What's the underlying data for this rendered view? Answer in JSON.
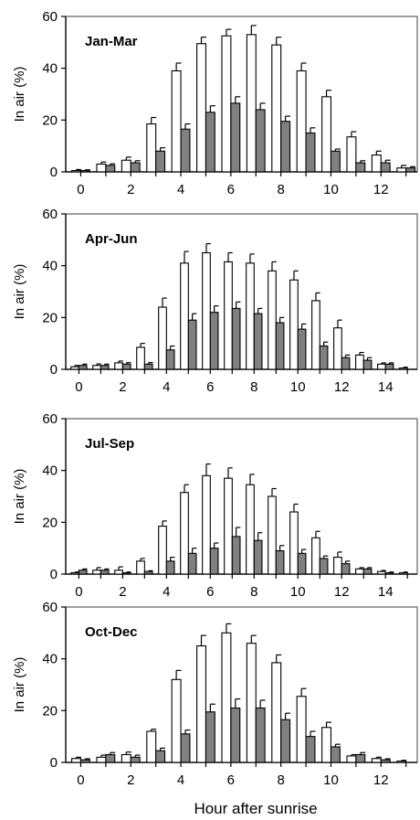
{
  "figure": {
    "xlabel": "Hour after sunrise",
    "colors": {
      "white_bar_fill": "#ffffff",
      "gray_bar_fill": "#808080",
      "bar_stroke": "#000000",
      "frame": "#7f7f7f"
    }
  },
  "chart_data": [
    {
      "type": "bar",
      "title": "Jan-Mar",
      "ylabel": "In air (%)",
      "xlabel": "",
      "ylim": [
        0,
        60
      ],
      "yticks": [
        0,
        20,
        40,
        60
      ],
      "xticks": [
        0,
        2,
        4,
        6,
        8,
        10,
        12
      ],
      "x": [
        0,
        1,
        2,
        3,
        4,
        5,
        6,
        7,
        8,
        9,
        10,
        11,
        12,
        13
      ],
      "series": [
        {
          "values": [
            0.5,
            3,
            4.5,
            18.5,
            39,
            49.5,
            52.5,
            53,
            49,
            39,
            29,
            13.5,
            6.5,
            1.5
          ],
          "errors": [
            0.4,
            0.8,
            1.2,
            2.5,
            3,
            2.5,
            2.5,
            3.5,
            3,
            3,
            2.5,
            2,
            1.5,
            1
          ]
        },
        {
          "values": [
            0.5,
            2.5,
            3.5,
            8,
            16.5,
            23,
            26.5,
            24,
            19.5,
            15,
            8,
            3.5,
            3.5,
            1.5
          ],
          "errors": [
            0.3,
            0.6,
            0.8,
            1.3,
            2,
            2.5,
            2.5,
            2.5,
            2,
            2,
            0.8,
            0.8,
            1,
            0.5
          ]
        }
      ]
    },
    {
      "type": "bar",
      "title": "Apr-Jun",
      "ylabel": "In air (%)",
      "xlabel": "",
      "ylim": [
        0,
        60
      ],
      "yticks": [
        0,
        20,
        40,
        60
      ],
      "xticks": [
        0,
        2,
        4,
        6,
        8,
        10,
        12,
        14
      ],
      "x": [
        0,
        1,
        2,
        3,
        4,
        5,
        6,
        7,
        8,
        9,
        10,
        11,
        12,
        13,
        14,
        15
      ],
      "series": [
        {
          "values": [
            1,
            1.5,
            2.5,
            8.5,
            24,
            41,
            45,
            41.5,
            41,
            38,
            34.5,
            26.5,
            16,
            5.5,
            2,
            0.5
          ],
          "errors": [
            0.5,
            0.6,
            0.7,
            1.5,
            3.5,
            4.5,
            3.5,
            3.5,
            3.5,
            3.5,
            3.5,
            3,
            3,
            1,
            0.5,
            0.3
          ]
        },
        {
          "values": [
            1.5,
            1.5,
            2,
            2,
            7.5,
            19,
            22,
            23.5,
            21.5,
            18,
            15.5,
            9,
            4.5,
            3.5,
            2,
            0
          ],
          "errors": [
            0.5,
            0.5,
            0.6,
            0.6,
            1.5,
            2.5,
            2.5,
            2.5,
            2,
            2,
            2,
            1.5,
            1,
            1,
            0.5,
            0
          ]
        }
      ]
    },
    {
      "type": "bar",
      "title": "Jul-Sep",
      "ylabel": "In air (%)",
      "xlabel": "",
      "ylim": [
        0,
        60
      ],
      "yticks": [
        0,
        20,
        40,
        60
      ],
      "xticks": [
        0,
        2,
        4,
        6,
        8,
        10,
        12,
        14
      ],
      "x": [
        0,
        1,
        2,
        3,
        4,
        5,
        6,
        7,
        8,
        9,
        10,
        11,
        12,
        13,
        14,
        15
      ],
      "series": [
        {
          "values": [
            0.5,
            1.5,
            1.5,
            5,
            18.5,
            31.5,
            38,
            37,
            34.5,
            30,
            24,
            14,
            6.5,
            2,
            1,
            0.5
          ],
          "errors": [
            0.3,
            1,
            1.3,
            1,
            2,
            3,
            4.5,
            4,
            4,
            3,
            3,
            2.5,
            2,
            0.5,
            0.4,
            0.3
          ]
        },
        {
          "values": [
            1.5,
            1.5,
            0.5,
            1,
            5,
            8,
            10,
            14.5,
            13,
            9,
            8,
            6,
            4,
            2,
            0.5,
            0
          ],
          "errors": [
            0.5,
            0.5,
            0.3,
            0.3,
            1.5,
            2,
            2,
            3.5,
            3,
            2,
            1.5,
            1,
            1,
            0.5,
            0.3,
            0
          ]
        }
      ]
    },
    {
      "type": "bar",
      "title": "Oct-Dec",
      "ylabel": "In air (%)",
      "xlabel": "Hour after sunrise",
      "ylim": [
        0,
        60
      ],
      "yticks": [
        0,
        20,
        40,
        60
      ],
      "xticks": [
        0,
        2,
        4,
        6,
        8,
        10,
        12
      ],
      "x": [
        0,
        1,
        2,
        3,
        4,
        5,
        6,
        7,
        8,
        9,
        10,
        11,
        12,
        13
      ],
      "series": [
        {
          "values": [
            1.5,
            2,
            3,
            12,
            32,
            45,
            50,
            46,
            38.5,
            25.5,
            13.5,
            2.5,
            1.5,
            0.5
          ],
          "errors": [
            0.5,
            0.8,
            1,
            0.8,
            3.5,
            4,
            3.5,
            3,
            3,
            3,
            2,
            0.5,
            0.5,
            0.3
          ]
        },
        {
          "values": [
            1,
            3,
            2,
            4.5,
            11,
            19.5,
            21,
            21,
            16.5,
            10,
            6,
            3,
            1,
            0
          ],
          "errors": [
            0.4,
            0.8,
            0.8,
            1,
            1.5,
            3,
            3.5,
            3,
            2.5,
            2,
            1,
            0.8,
            0.4,
            0
          ]
        }
      ]
    }
  ]
}
